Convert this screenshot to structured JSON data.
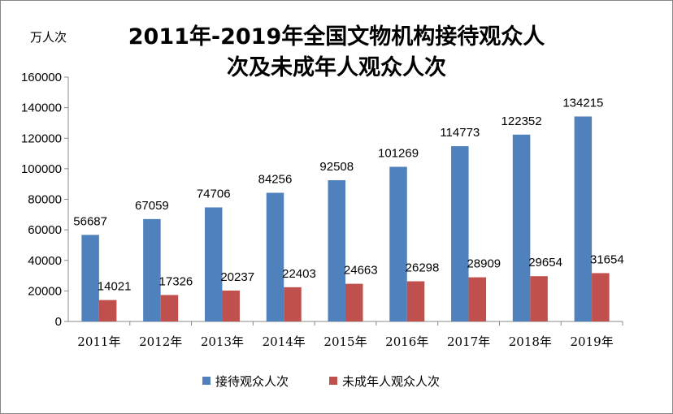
{
  "chart_data": {
    "type": "bar",
    "title_line1": "2011年-2019年全国文物机构接待观众人",
    "title_line2": "次及未成年人观众人次",
    "ylabel": "万人次",
    "xlabel": "",
    "categories": [
      "2011年",
      "2012年",
      "2013年",
      "2014年",
      "2015年",
      "2016年",
      "2017年",
      "2018年",
      "2019年"
    ],
    "series": [
      {
        "name": "接待观众人次",
        "color": "#4F81BD",
        "values": [
          56687,
          67059,
          74706,
          84256,
          92508,
          101269,
          114773,
          122352,
          134215
        ]
      },
      {
        "name": "未成年人观众人次",
        "color": "#C0504D",
        "values": [
          14021,
          17326,
          20237,
          22403,
          24663,
          26298,
          28909,
          29654,
          31654
        ]
      }
    ],
    "ylim": [
      0,
      160000
    ],
    "yticks": [
      0,
      20000,
      40000,
      60000,
      80000,
      100000,
      120000,
      140000,
      160000
    ],
    "grid": false,
    "legend": "bottom"
  }
}
